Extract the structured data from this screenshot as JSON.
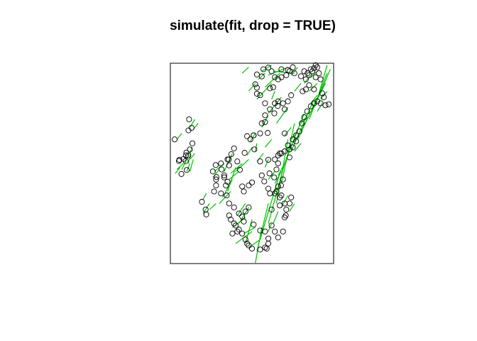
{
  "chart_data": {
    "type": "scatter",
    "title": "simulate(fit, drop = TRUE)",
    "xlabel": "",
    "ylabel": "",
    "axes": false,
    "grid": false,
    "point_color": "#000000",
    "segment_color": "#00C000",
    "points": [
      [
        0.026,
        0.62
      ],
      [
        0.052,
        0.512
      ],
      [
        0.055,
        0.518
      ],
      [
        0.081,
        0.522
      ],
      [
        0.094,
        0.512
      ],
      [
        0.098,
        0.554
      ],
      [
        0.1,
        0.467
      ],
      [
        0.111,
        0.665
      ],
      [
        0.13,
        0.677
      ],
      [
        0.115,
        0.72
      ],
      [
        0.068,
        0.447
      ],
      [
        0.193,
        0.308
      ],
      [
        0.22,
        0.245
      ],
      [
        0.216,
        0.27
      ],
      [
        0.26,
        0.46
      ],
      [
        0.268,
        0.36
      ],
      [
        0.278,
        0.492
      ],
      [
        0.282,
        0.432
      ],
      [
        0.31,
        0.5
      ],
      [
        0.314,
        0.47
      ],
      [
        0.33,
        0.43
      ],
      [
        0.34,
        0.39
      ],
      [
        0.35,
        0.408
      ],
      [
        0.358,
        0.52
      ],
      [
        0.373,
        0.546
      ],
      [
        0.39,
        0.575
      ],
      [
        0.41,
        0.51
      ],
      [
        0.426,
        0.468
      ],
      [
        0.455,
        0.553
      ],
      [
        0.47,
        0.636
      ],
      [
        0.49,
        0.62
      ],
      [
        0.51,
        0.64
      ],
      [
        0.55,
        0.65
      ],
      [
        0.58,
        0.706
      ],
      [
        0.596,
        0.652
      ],
      [
        0.61,
        0.77
      ],
      [
        0.637,
        0.75
      ],
      [
        0.658,
        0.787
      ],
      [
        0.69,
        0.8
      ],
      [
        0.7,
        0.65
      ],
      [
        0.515,
        0.57
      ],
      [
        0.55,
        0.51
      ],
      [
        0.56,
        0.44
      ],
      [
        0.575,
        0.41
      ],
      [
        0.6,
        0.374
      ],
      [
        0.61,
        0.35
      ],
      [
        0.64,
        0.35
      ],
      [
        0.66,
        0.385
      ],
      [
        0.678,
        0.39
      ],
      [
        0.69,
        0.42
      ],
      [
        0.67,
        0.33
      ],
      [
        0.7,
        0.3
      ],
      [
        0.707,
        0.24
      ],
      [
        0.636,
        0.43
      ],
      [
        0.607,
        0.45
      ],
      [
        0.6,
        0.518
      ],
      [
        0.64,
        0.52
      ],
      [
        0.66,
        0.54
      ],
      [
        0.68,
        0.55
      ],
      [
        0.72,
        0.59
      ],
      [
        0.75,
        0.62
      ],
      [
        0.77,
        0.64
      ],
      [
        0.79,
        0.66
      ],
      [
        0.805,
        0.7
      ],
      [
        0.82,
        0.73
      ],
      [
        0.838,
        0.76
      ],
      [
        0.86,
        0.785
      ],
      [
        0.88,
        0.8
      ],
      [
        0.9,
        0.81
      ],
      [
        0.92,
        0.8
      ],
      [
        0.95,
        0.79
      ],
      [
        0.97,
        0.795
      ],
      [
        0.94,
        0.83
      ],
      [
        0.88,
        0.87
      ],
      [
        0.85,
        0.89
      ],
      [
        0.83,
        0.92
      ],
      [
        0.8,
        0.935
      ],
      [
        0.76,
        0.95
      ],
      [
        0.72,
        0.966
      ],
      [
        0.68,
        0.97
      ],
      [
        0.6,
        0.978
      ],
      [
        0.57,
        0.97
      ],
      [
        0.56,
        0.934
      ],
      [
        0.53,
        0.944
      ],
      [
        0.52,
        0.895
      ],
      [
        0.53,
        0.878
      ],
      [
        0.53,
        0.848
      ],
      [
        0.55,
        0.84
      ],
      [
        0.58,
        0.8
      ],
      [
        0.61,
        0.875
      ],
      [
        0.63,
        0.88
      ],
      [
        0.66,
        0.81
      ],
      [
        0.58,
        0.74
      ],
      [
        0.56,
        0.7
      ],
      [
        0.51,
        0.64
      ],
      [
        0.89,
        0.93
      ],
      [
        0.91,
        0.95
      ],
      [
        0.88,
        0.975
      ],
      [
        0.86,
        0.97
      ],
      [
        0.89,
        0.99
      ],
      [
        0.12,
        0.57
      ],
      [
        0.135,
        0.6
      ],
      [
        0.11,
        0.54
      ],
      [
        0.095,
        0.54
      ],
      [
        0.44,
        0.385
      ],
      [
        0.45,
        0.36
      ],
      [
        0.48,
        0.39
      ],
      [
        0.5,
        0.405
      ],
      [
        0.44,
        0.15
      ],
      [
        0.46,
        0.12
      ],
      [
        0.47,
        0.1
      ],
      [
        0.48,
        0.09
      ],
      [
        0.5,
        0.075
      ],
      [
        0.55,
        0.07
      ],
      [
        0.58,
        0.08
      ],
      [
        0.59,
        0.075
      ],
      [
        0.6,
        0.1
      ],
      [
        0.6,
        0.125
      ],
      [
        0.58,
        0.16
      ],
      [
        0.55,
        0.165
      ],
      [
        0.51,
        0.195
      ],
      [
        0.45,
        0.21
      ],
      [
        0.42,
        0.17
      ],
      [
        0.41,
        0.16
      ],
      [
        0.38,
        0.15
      ],
      [
        0.39,
        0.2
      ],
      [
        0.4,
        0.19
      ],
      [
        0.37,
        0.22
      ],
      [
        0.36,
        0.24
      ],
      [
        0.42,
        0.25
      ],
      [
        0.44,
        0.235
      ],
      [
        0.46,
        0.26
      ],
      [
        0.48,
        0.28
      ],
      [
        0.39,
        0.28
      ],
      [
        0.36,
        0.3
      ],
      [
        0.345,
        0.34
      ],
      [
        0.31,
        0.35
      ],
      [
        0.28,
        0.39
      ],
      [
        0.28,
        0.42
      ],
      [
        0.33,
        0.44
      ],
      [
        0.36,
        0.49
      ],
      [
        0.35,
        0.52
      ],
      [
        0.65,
        0.36
      ],
      [
        0.67,
        0.29
      ],
      [
        0.62,
        0.27
      ],
      [
        0.62,
        0.19
      ],
      [
        0.64,
        0.16
      ],
      [
        0.66,
        0.13
      ],
      [
        0.69,
        0.16
      ],
      [
        0.7,
        0.23
      ],
      [
        0.71,
        0.27
      ],
      [
        0.73,
        0.3
      ],
      [
        0.74,
        0.33
      ],
      [
        0.68,
        0.34
      ],
      [
        0.65,
        0.47
      ],
      [
        0.66,
        0.5
      ],
      [
        0.67,
        0.55
      ],
      [
        0.7,
        0.56
      ],
      [
        0.73,
        0.57
      ],
      [
        0.75,
        0.58
      ],
      [
        0.77,
        0.61
      ],
      [
        0.73,
        0.53
      ],
      [
        0.64,
        0.8
      ],
      [
        0.7,
        0.77
      ],
      [
        0.72,
        0.81
      ],
      [
        0.74,
        0.84
      ],
      [
        0.81,
        0.86
      ],
      [
        0.83,
        0.87
      ],
      [
        0.84,
        0.95
      ],
      [
        0.87,
        0.96
      ],
      [
        0.62,
        0.96
      ],
      [
        0.64,
        0.93
      ],
      [
        0.66,
        0.92
      ],
      [
        0.68,
        0.93
      ],
      [
        0.71,
        0.94
      ],
      [
        0.73,
        0.96
      ],
      [
        0.75,
        0.98
      ],
      [
        0.9,
        0.98
      ],
      [
        0.92,
        0.92
      ],
      [
        0.93,
        0.85
      ],
      [
        0.82,
        0.96
      ],
      [
        0.85,
        0.94
      ]
    ],
    "segments": [
      [
        0.52,
        0.0,
        0.56,
        0.18
      ],
      [
        0.53,
        0.06,
        0.6,
        0.3
      ],
      [
        0.55,
        0.12,
        0.67,
        0.45
      ],
      [
        0.6,
        0.2,
        0.7,
        0.5
      ],
      [
        0.65,
        0.3,
        0.72,
        0.62
      ],
      [
        0.68,
        0.4,
        0.76,
        0.7
      ],
      [
        0.7,
        0.5,
        0.82,
        0.75
      ],
      [
        0.74,
        0.56,
        0.88,
        0.82
      ],
      [
        0.78,
        0.62,
        0.92,
        0.86
      ],
      [
        0.8,
        0.66,
        0.95,
        0.9
      ],
      [
        0.85,
        0.72,
        0.96,
        0.95
      ],
      [
        0.88,
        0.78,
        0.98,
        0.97
      ],
      [
        0.9,
        0.82,
        0.96,
        0.99
      ],
      [
        0.58,
        0.88,
        0.67,
        0.95
      ],
      [
        0.6,
        0.94,
        0.72,
        0.98
      ],
      [
        0.63,
        0.96,
        0.76,
        0.95
      ],
      [
        0.53,
        0.82,
        0.62,
        0.9
      ],
      [
        0.6,
        0.75,
        0.68,
        0.83
      ],
      [
        0.65,
        0.7,
        0.72,
        0.78
      ],
      [
        0.56,
        0.68,
        0.6,
        0.74
      ],
      [
        0.4,
        0.1,
        0.5,
        0.16
      ],
      [
        0.42,
        0.2,
        0.48,
        0.28
      ],
      [
        0.46,
        0.1,
        0.5,
        0.22
      ],
      [
        0.48,
        0.08,
        0.55,
        0.12
      ],
      [
        0.45,
        0.15,
        0.52,
        0.18
      ],
      [
        0.38,
        0.18,
        0.46,
        0.23
      ],
      [
        0.41,
        0.24,
        0.46,
        0.3
      ],
      [
        0.3,
        0.3,
        0.37,
        0.36
      ],
      [
        0.32,
        0.33,
        0.38,
        0.42
      ],
      [
        0.35,
        0.36,
        0.4,
        0.48
      ],
      [
        0.36,
        0.42,
        0.42,
        0.46
      ],
      [
        0.37,
        0.45,
        0.44,
        0.5
      ],
      [
        0.33,
        0.46,
        0.38,
        0.55
      ],
      [
        0.4,
        0.46,
        0.48,
        0.52
      ],
      [
        0.26,
        0.43,
        0.3,
        0.47
      ],
      [
        0.27,
        0.46,
        0.33,
        0.5
      ],
      [
        0.12,
        0.46,
        0.14,
        0.52
      ],
      [
        0.11,
        0.5,
        0.13,
        0.58
      ],
      [
        0.12,
        0.52,
        0.15,
        0.55
      ],
      [
        0.1,
        0.46,
        0.12,
        0.5
      ],
      [
        0.04,
        0.47,
        0.08,
        0.5
      ],
      [
        0.03,
        0.45,
        0.06,
        0.48
      ],
      [
        0.07,
        0.47,
        0.1,
        0.52
      ],
      [
        0.14,
        0.67,
        0.17,
        0.7
      ],
      [
        0.12,
        0.68,
        0.15,
        0.72
      ],
      [
        0.04,
        0.62,
        0.07,
        0.65
      ],
      [
        0.24,
        0.27,
        0.28,
        0.3
      ],
      [
        0.2,
        0.25,
        0.24,
        0.3
      ],
      [
        0.2,
        0.32,
        0.22,
        0.35
      ],
      [
        0.52,
        0.56,
        0.53,
        0.6
      ],
      [
        0.49,
        0.61,
        0.52,
        0.65
      ],
      [
        0.58,
        0.48,
        0.6,
        0.52
      ],
      [
        0.53,
        0.51,
        0.57,
        0.55
      ],
      [
        0.64,
        0.4,
        0.68,
        0.46
      ],
      [
        0.66,
        0.44,
        0.7,
        0.5
      ],
      [
        0.6,
        0.42,
        0.64,
        0.46
      ],
      [
        0.62,
        0.34,
        0.66,
        0.38
      ],
      [
        0.63,
        0.2,
        0.66,
        0.26
      ],
      [
        0.6,
        0.16,
        0.62,
        0.2
      ],
      [
        0.68,
        0.28,
        0.72,
        0.34
      ],
      [
        0.73,
        0.26,
        0.76,
        0.3
      ],
      [
        0.76,
        0.56,
        0.8,
        0.6
      ],
      [
        0.72,
        0.56,
        0.74,
        0.6
      ],
      [
        0.74,
        0.62,
        0.78,
        0.66
      ],
      [
        0.7,
        0.64,
        0.74,
        0.68
      ],
      [
        0.8,
        0.7,
        0.84,
        0.74
      ],
      [
        0.86,
        0.8,
        0.9,
        0.84
      ],
      [
        0.9,
        0.76,
        0.93,
        0.8
      ],
      [
        0.92,
        0.82,
        0.96,
        0.86
      ],
      [
        0.76,
        0.86,
        0.8,
        0.9
      ],
      [
        0.82,
        0.9,
        0.86,
        0.94
      ],
      [
        0.85,
        0.86,
        0.9,
        0.9
      ],
      [
        0.86,
        0.93,
        0.9,
        0.96
      ],
      [
        0.74,
        0.94,
        0.78,
        0.98
      ],
      [
        0.56,
        0.96,
        0.62,
        0.99
      ],
      [
        0.54,
        0.92,
        0.58,
        0.95
      ],
      [
        0.48,
        0.86,
        0.52,
        0.9
      ],
      [
        0.44,
        0.95,
        0.48,
        0.98
      ],
      [
        0.62,
        0.82,
        0.64,
        0.86
      ],
      [
        0.58,
        0.58,
        0.62,
        0.62
      ],
      [
        0.47,
        0.54,
        0.5,
        0.58
      ]
    ]
  }
}
